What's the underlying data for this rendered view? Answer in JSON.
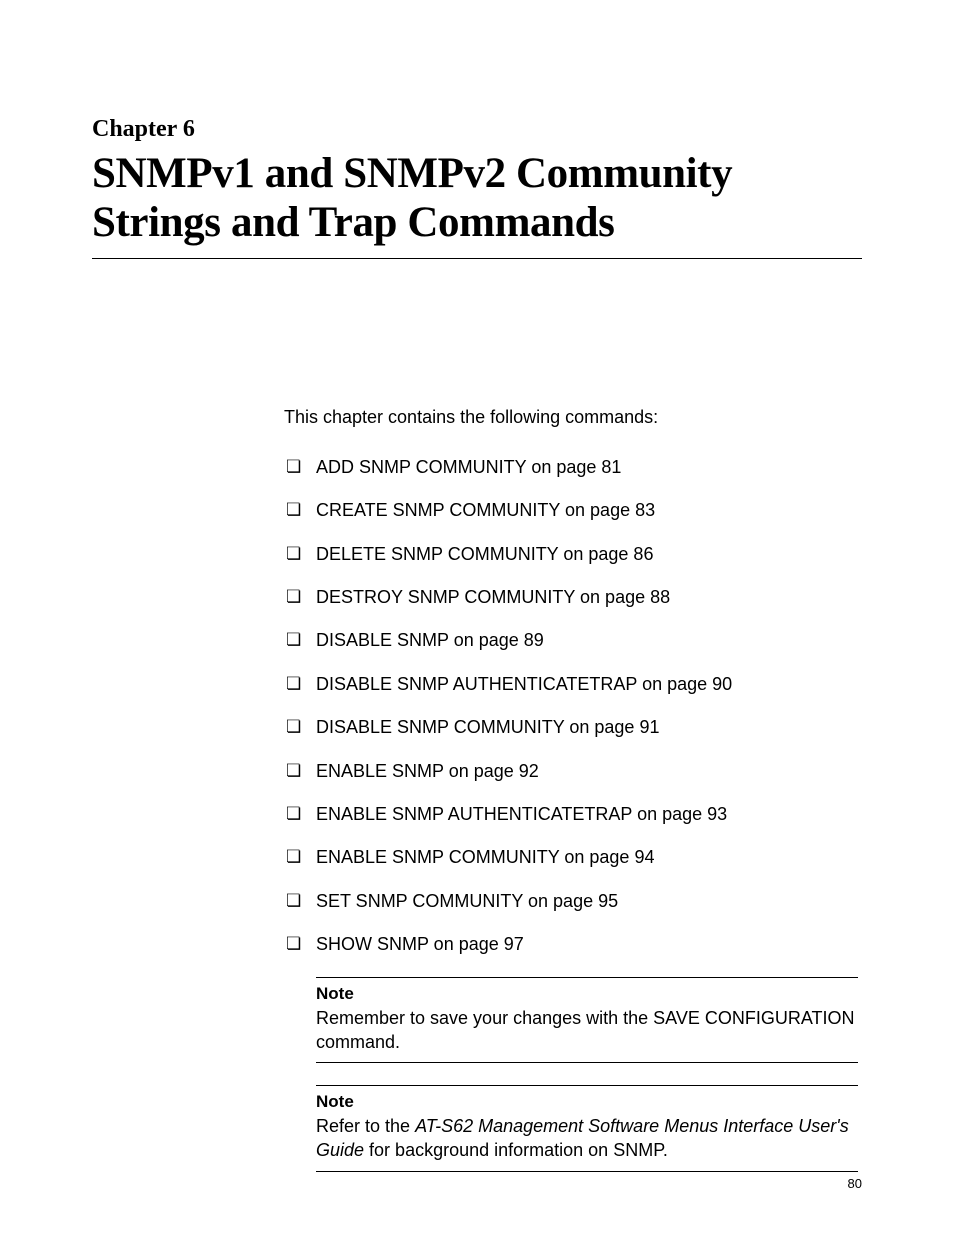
{
  "chapter": {
    "label": "Chapter 6",
    "title": "SNMPv1 and SNMPv2 Community Strings and Trap Commands"
  },
  "intro": "This chapter contains the following commands:",
  "commands": [
    "ADD SNMP COMMUNITY on page 81",
    "CREATE SNMP COMMUNITY on page 83",
    "DELETE SNMP COMMUNITY on page 86",
    "DESTROY SNMP COMMUNITY on page 88",
    "DISABLE SNMP on page 89",
    "DISABLE SNMP AUTHENTICATETRAP on page 90",
    "DISABLE SNMP COMMUNITY on page 91",
    "ENABLE SNMP on page 92",
    "ENABLE SNMP AUTHENTICATETRAP on page 93",
    "ENABLE SNMP COMMUNITY on page 94",
    "SET SNMP COMMUNITY on page 95",
    "SHOW SNMP on page 97"
  ],
  "notes": [
    {
      "label": "Note",
      "body_pre": "Remember to save your changes with the SAVE CONFIGURATION command.",
      "body_italic": "",
      "body_post": ""
    },
    {
      "label": "Note",
      "body_pre": "Refer to the ",
      "body_italic": "AT-S62 Management Software Menus Interface User's Guide",
      "body_post": " for background information on SNMP."
    }
  ],
  "page_number": "80"
}
